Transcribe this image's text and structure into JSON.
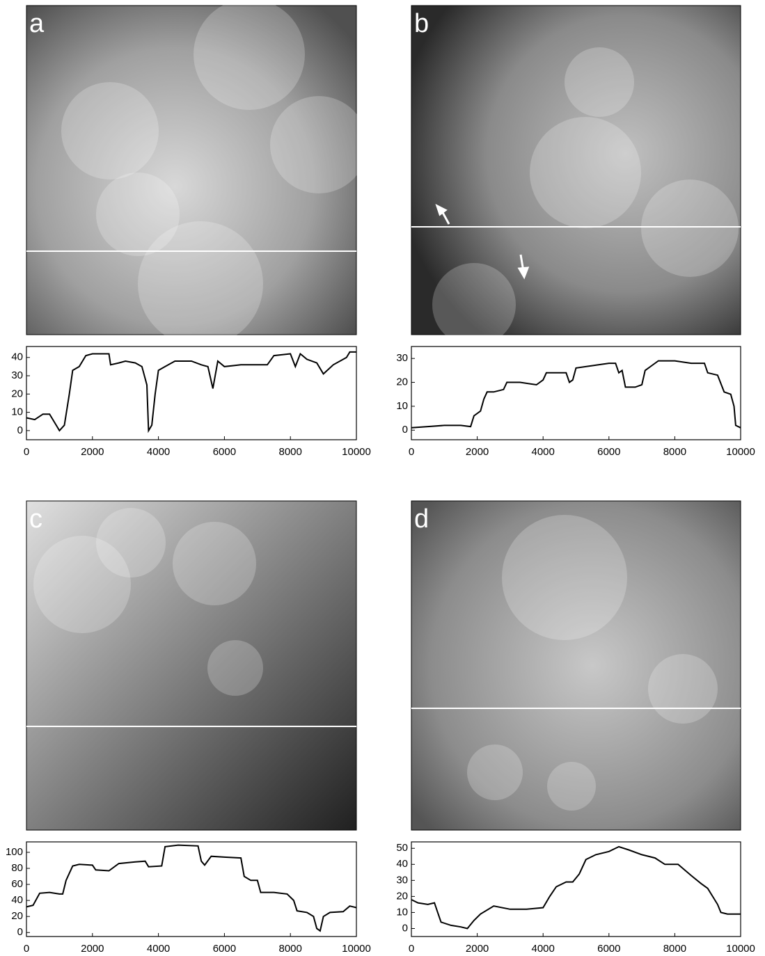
{
  "chart_data": [
    {
      "type": "line",
      "label": "a",
      "color": "#000000",
      "x": [
        0,
        250,
        500,
        700,
        900,
        1000,
        1150,
        1300,
        1400,
        1600,
        1800,
        2000,
        2300,
        2500,
        2550,
        2800,
        3000,
        3300,
        3500,
        3650,
        3700,
        3800,
        3900,
        4000,
        4200,
        4500,
        5000,
        5300,
        5500,
        5650,
        5800,
        6000,
        6500,
        7000,
        7300,
        7500,
        8000,
        8150,
        8300,
        8500,
        8800,
        9000,
        9300,
        9700,
        9800,
        10000
      ],
      "values": [
        7,
        6,
        9,
        9,
        3,
        0,
        3,
        20,
        33,
        35,
        41,
        42,
        42,
        42,
        36,
        37,
        38,
        37,
        35,
        25,
        0,
        3,
        20,
        33,
        35,
        38,
        38,
        36,
        35,
        23,
        38,
        35,
        36,
        36,
        36,
        41,
        42,
        35,
        42,
        39,
        37,
        31,
        36,
        40,
        43,
        43
      ],
      "xlim": [
        0,
        10000
      ],
      "ylim": [
        -5,
        46
      ],
      "xticks": [
        0,
        2000,
        4000,
        6000,
        8000,
        10000
      ],
      "yticks": [
        0,
        10,
        20,
        30,
        40
      ]
    },
    {
      "type": "line",
      "label": "b",
      "color": "#000000",
      "x": [
        0,
        500,
        1000,
        1500,
        1800,
        1900,
        2100,
        2200,
        2300,
        2500,
        2800,
        2900,
        3300,
        3800,
        4000,
        4100,
        4500,
        4700,
        4800,
        4900,
        5000,
        5500,
        6000,
        6200,
        6300,
        6400,
        6500,
        6800,
        7000,
        7100,
        7300,
        7500,
        8000,
        8500,
        8900,
        9000,
        9300,
        9500,
        9700,
        9800,
        9850,
        10000
      ],
      "values": [
        1,
        1.5,
        2,
        2,
        1.5,
        6,
        8,
        13,
        16,
        16,
        17,
        20,
        20,
        19,
        21,
        24,
        24,
        24,
        20,
        21,
        26,
        27,
        28,
        28,
        24,
        25,
        18,
        18,
        19,
        25,
        27,
        29,
        29,
        28,
        28,
        24,
        23,
        16,
        15,
        10,
        2,
        1
      ],
      "xlim": [
        0,
        10000
      ],
      "ylim": [
        -4,
        35
      ],
      "xticks": [
        0,
        2000,
        4000,
        6000,
        8000,
        10000
      ],
      "yticks": [
        0,
        10,
        20,
        30
      ]
    },
    {
      "type": "line",
      "label": "c",
      "color": "#000000",
      "x": [
        0,
        200,
        400,
        700,
        1000,
        1100,
        1200,
        1400,
        1600,
        2000,
        2100,
        2500,
        2800,
        3300,
        3600,
        3700,
        4100,
        4200,
        4600,
        5200,
        5300,
        5400,
        5600,
        6000,
        6500,
        6600,
        6800,
        7000,
        7100,
        7500,
        7900,
        8100,
        8200,
        8500,
        8700,
        8800,
        8900,
        9000,
        9200,
        9600,
        9800,
        10000
      ],
      "values": [
        32,
        34,
        49,
        50,
        48,
        48,
        65,
        83,
        85,
        84,
        78,
        77,
        86,
        88,
        89,
        82,
        83,
        107,
        109,
        108,
        89,
        84,
        95,
        94,
        93,
        70,
        65,
        65,
        50,
        50,
        48,
        40,
        27,
        25,
        20,
        5,
        2,
        20,
        25,
        26,
        33,
        31
      ],
      "xlim": [
        0,
        10000
      ],
      "ylim": [
        -5,
        113
      ],
      "xticks": [
        0,
        2000,
        4000,
        6000,
        8000,
        10000
      ],
      "yticks": [
        0,
        20,
        40,
        60,
        80,
        100
      ]
    },
    {
      "type": "line",
      "label": "d",
      "color": "#000000",
      "x": [
        0,
        200,
        500,
        700,
        800,
        900,
        1200,
        1500,
        1700,
        1900,
        2100,
        2500,
        3000,
        3500,
        4000,
        4200,
        4400,
        4700,
        4900,
        5100,
        5300,
        5600,
        6000,
        6300,
        6600,
        7000,
        7400,
        7700,
        8100,
        8500,
        8800,
        9000,
        9300,
        9400,
        9600,
        10000
      ],
      "values": [
        18,
        16,
        15,
        16,
        10,
        4,
        2,
        1,
        0,
        5,
        9,
        14,
        12,
        12,
        13,
        20,
        26,
        29,
        29,
        34,
        43,
        46,
        48,
        51,
        49,
        46,
        44,
        40,
        40,
        33,
        28,
        25,
        15,
        10,
        9,
        9
      ],
      "xlim": [
        0,
        10000
      ],
      "ylim": [
        -5,
        54
      ],
      "xticks": [
        0,
        2000,
        4000,
        6000,
        8000,
        10000
      ],
      "yticks": [
        0,
        10,
        20,
        30,
        40,
        50
      ]
    }
  ]
}
